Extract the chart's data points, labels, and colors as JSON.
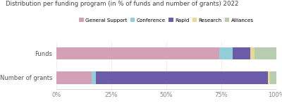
{
  "title": "Distribution per funding program (in % of funds and number of grants) 2022",
  "categories": [
    "Number of grants",
    "Funds"
  ],
  "legend_labels": [
    "General Support",
    "Conference",
    "Rapid",
    "Research",
    "Alliances"
  ],
  "colors": [
    "#d4a0b5",
    "#93cdd8",
    "#6b5ba8",
    "#e8d898",
    "#b8ccb0"
  ],
  "rows_data": [
    [
      16,
      2,
      78,
      1,
      3
    ],
    [
      74,
      6,
      8,
      2,
      10
    ]
  ],
  "xlim": [
    0,
    100
  ],
  "xticks": [
    0,
    25,
    50,
    75,
    100
  ],
  "xtick_labels": [
    "0%",
    "25%",
    "50%",
    "75%",
    "100%"
  ],
  "background_color": "#ffffff",
  "grid_color": "#e8e8e8"
}
